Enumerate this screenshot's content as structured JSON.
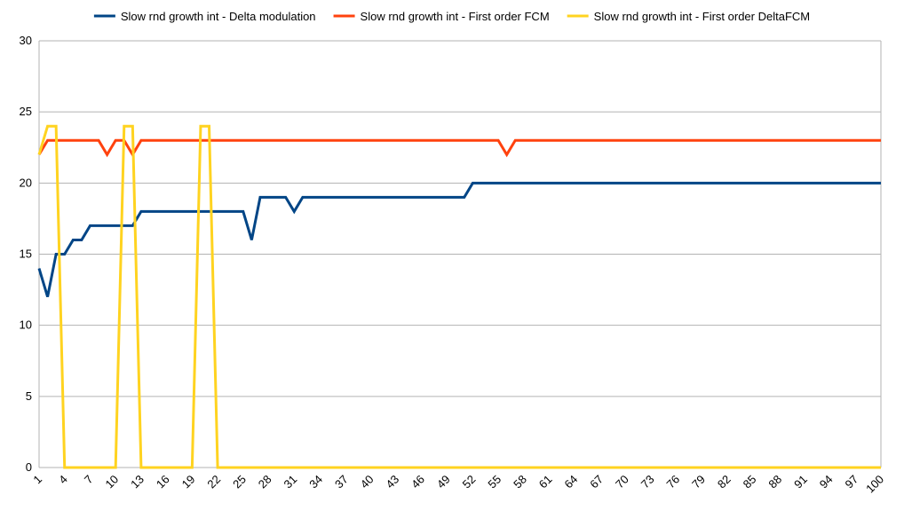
{
  "chart_data": {
    "type": "line",
    "title": "",
    "xlabel": "",
    "ylabel": "",
    "ylim": [
      0,
      30
    ],
    "yticks": [
      0,
      5,
      10,
      15,
      20,
      25,
      30
    ],
    "x_ticks_shown": [
      1,
      4,
      7,
      10,
      13,
      16,
      19,
      22,
      25,
      28,
      31,
      34,
      37,
      40,
      43,
      46,
      49,
      52,
      55,
      58,
      61,
      64,
      67,
      70,
      73,
      76,
      79,
      82,
      85,
      88,
      91,
      94,
      97,
      100
    ],
    "x_range": [
      1,
      100
    ],
    "grid": "horizontal",
    "legend_position": "top",
    "series": [
      {
        "name": "Slow rnd growth int - Delta modulation",
        "color": "#004586",
        "values": [
          14,
          12,
          15,
          15,
          16,
          16,
          17,
          17,
          17,
          17,
          17,
          17,
          18,
          18,
          18,
          18,
          18,
          18,
          18,
          18,
          18,
          18,
          18,
          18,
          18,
          16,
          19,
          19,
          19,
          19,
          18,
          19,
          19,
          19,
          19,
          19,
          19,
          19,
          19,
          19,
          19,
          19,
          19,
          19,
          19,
          19,
          19,
          19,
          19,
          19,
          19,
          20,
          20,
          20,
          20,
          20,
          20,
          20,
          20,
          20,
          20,
          20,
          20,
          20,
          20,
          20,
          20,
          20,
          20,
          20,
          20,
          20,
          20,
          20,
          20,
          20,
          20,
          20,
          20,
          20,
          20,
          20,
          20,
          20,
          20,
          20,
          20,
          20,
          20,
          20,
          20,
          20,
          20,
          20,
          20,
          20,
          20,
          20,
          20,
          20
        ]
      },
      {
        "name": "Slow rnd growth int - First order FCM",
        "color": "#ff420e",
        "values": [
          22,
          23,
          23,
          23,
          23,
          23,
          23,
          23,
          22,
          23,
          23,
          22,
          23,
          23,
          23,
          23,
          23,
          23,
          23,
          23,
          23,
          23,
          23,
          23,
          23,
          23,
          23,
          23,
          23,
          23,
          23,
          23,
          23,
          23,
          23,
          23,
          23,
          23,
          23,
          23,
          23,
          23,
          23,
          23,
          23,
          23,
          23,
          23,
          23,
          23,
          23,
          23,
          23,
          23,
          23,
          22,
          23,
          23,
          23,
          23,
          23,
          23,
          23,
          23,
          23,
          23,
          23,
          23,
          23,
          23,
          23,
          23,
          23,
          23,
          23,
          23,
          23,
          23,
          23,
          23,
          23,
          23,
          23,
          23,
          23,
          23,
          23,
          23,
          23,
          23,
          23,
          23,
          23,
          23,
          23,
          23,
          23,
          23,
          23,
          23
        ]
      },
      {
        "name": "Slow rnd growth int - First order DeltaFCM",
        "color": "#ffd320",
        "values": [
          22,
          24,
          24,
          0,
          0,
          0,
          0,
          0,
          0,
          0,
          24,
          24,
          0,
          0,
          0,
          0,
          0,
          0,
          0,
          24,
          24,
          0,
          0,
          0,
          0,
          0,
          0,
          0,
          0,
          0,
          0,
          0,
          0,
          0,
          0,
          0,
          0,
          0,
          0,
          0,
          0,
          0,
          0,
          0,
          0,
          0,
          0,
          0,
          0,
          0,
          0,
          0,
          0,
          0,
          0,
          0,
          0,
          0,
          0,
          0,
          0,
          0,
          0,
          0,
          0,
          0,
          0,
          0,
          0,
          0,
          0,
          0,
          0,
          0,
          0,
          0,
          0,
          0,
          0,
          0,
          0,
          0,
          0,
          0,
          0,
          0,
          0,
          0,
          0,
          0,
          0,
          0,
          0,
          0,
          0,
          0,
          0,
          0,
          0,
          0
        ]
      }
    ]
  }
}
